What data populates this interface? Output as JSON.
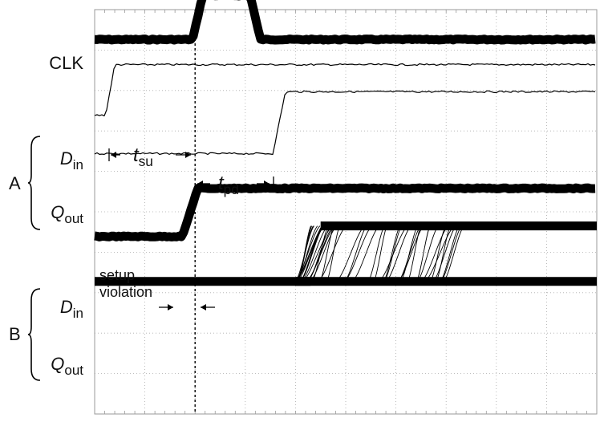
{
  "chart_data": {
    "type": "line",
    "title": "",
    "xlabel": "",
    "ylabel": "",
    "grid": true,
    "x_divisions": 10,
    "y_divisions": 10,
    "xlim": [
      0,
      10
    ],
    "ylim": [
      0,
      10
    ],
    "trigger_x": 2.0,
    "traces": [
      {
        "label": "CLK",
        "group": "",
        "style": "thick",
        "low_y": 9.26,
        "high_y": 10.35,
        "rise_x": 1.95,
        "fall_x": 3.3
      },
      {
        "label": "D",
        "subscript": "in",
        "group": "A",
        "style": "thin",
        "low_y": 7.39,
        "high_y": 8.64,
        "rise_x": 0.22
      },
      {
        "label": "Q",
        "subscript": "out",
        "group": "A",
        "style": "thin",
        "low_y": 6.44,
        "high_y": 7.97,
        "rise_x": 3.55
      },
      {
        "label": "D",
        "subscript": "in",
        "group": "B",
        "style": "thick",
        "low_y": 4.39,
        "high_y": 5.58,
        "rise_x": 1.75
      },
      {
        "label": "Q",
        "subscript": "out",
        "group": "B",
        "style": "thick",
        "low_y": 3.28,
        "high_y": 4.65,
        "rise_x_range": [
          4.0,
          7.0
        ]
      }
    ],
    "annotations": {
      "setup_time": {
        "var": "t",
        "sub": "su"
      },
      "prop_delay": {
        "var": "t",
        "sub": "pd"
      },
      "setup_violation": [
        "setup",
        "violation"
      ]
    }
  }
}
